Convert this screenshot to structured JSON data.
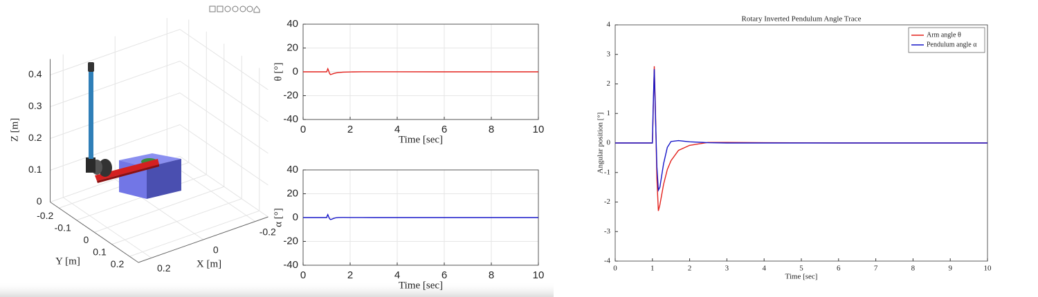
{
  "chart_data": [
    {
      "type": "scene3d",
      "xlabel": "X [m]",
      "ylabel": "Y [m]",
      "zlabel": "Z [m]",
      "xlim": [
        -0.25,
        0.25
      ],
      "ylim": [
        -0.25,
        0.25
      ],
      "zlim": [
        0,
        0.45
      ],
      "xticks": [
        -0.2,
        0,
        0.2
      ],
      "yticks": [
        -0.2,
        -0.1,
        0,
        0.1,
        0.2
      ],
      "zticks": [
        0,
        0.1,
        0.2,
        0.3,
        0.4
      ],
      "grid": true
    },
    {
      "type": "line",
      "xlabel": "Time [sec]",
      "ylabel": "θ [°]",
      "xlim": [
        0,
        10
      ],
      "ylim": [
        -40,
        40
      ],
      "xticks": [
        0,
        2,
        4,
        6,
        8,
        10
      ],
      "yticks": [
        -40,
        -20,
        0,
        20,
        40
      ],
      "grid": true,
      "x": [
        0,
        1.0,
        1.02,
        1.05,
        1.08,
        1.12,
        1.16,
        1.2,
        1.3,
        1.4,
        1.5,
        1.7,
        2.0,
        2.5,
        3,
        4,
        6,
        8,
        10
      ],
      "series": [
        {
          "color": "#e3211c",
          "values": [
            0,
            0,
            1.0,
            2.6,
            1.2,
            -1.2,
            -2.3,
            -2.1,
            -1.4,
            -0.9,
            -0.6,
            -0.25,
            -0.08,
            0.02,
            0.02,
            0.01,
            0,
            0,
            0
          ]
        }
      ]
    },
    {
      "type": "line",
      "xlabel": "Time [sec]",
      "ylabel": "α [°]",
      "xlim": [
        0,
        10
      ],
      "ylim": [
        -40,
        40
      ],
      "xticks": [
        0,
        2,
        4,
        6,
        8,
        10
      ],
      "yticks": [
        -40,
        -20,
        0,
        20,
        40
      ],
      "grid": true,
      "x": [
        0,
        1.0,
        1.02,
        1.05,
        1.08,
        1.12,
        1.16,
        1.2,
        1.3,
        1.4,
        1.5,
        1.7,
        2.0,
        2.5,
        3,
        4,
        6,
        8,
        10
      ],
      "series": [
        {
          "color": "#1515c8",
          "values": [
            0,
            0,
            1.2,
            2.5,
            1.0,
            -0.8,
            -1.6,
            -1.5,
            -0.7,
            -0.15,
            0.05,
            0.08,
            0.04,
            0.01,
            0,
            0,
            0,
            0,
            0
          ]
        }
      ]
    },
    {
      "type": "line",
      "title": "Rotary Inverted Pendulum Angle Trace",
      "xlabel": "Time [sec]",
      "ylabel": "Angular position [°]",
      "xlim": [
        0,
        10
      ],
      "ylim": [
        -4,
        4
      ],
      "xticks": [
        0,
        1,
        2,
        3,
        4,
        5,
        6,
        7,
        8,
        9,
        10
      ],
      "yticks": [
        -4,
        -3,
        -2,
        -1,
        0,
        1,
        2,
        3,
        4
      ],
      "grid": false,
      "legend": "northeast",
      "x": [
        0,
        1.0,
        1.02,
        1.05,
        1.08,
        1.12,
        1.16,
        1.2,
        1.3,
        1.4,
        1.5,
        1.7,
        2.0,
        2.5,
        3,
        4,
        6,
        8,
        10
      ],
      "series": [
        {
          "name": "Arm angle θ",
          "color": "#e3211c",
          "values": [
            0,
            0,
            1.0,
            2.6,
            1.2,
            -1.2,
            -2.3,
            -2.1,
            -1.4,
            -0.9,
            -0.6,
            -0.25,
            -0.08,
            0.02,
            0.02,
            0.01,
            0,
            0,
            0
          ]
        },
        {
          "name": "Pendulum angle α",
          "color": "#1515c8",
          "values": [
            0,
            0,
            1.2,
            2.5,
            1.0,
            -0.8,
            -1.6,
            -1.5,
            -0.7,
            -0.15,
            0.05,
            0.08,
            0.04,
            0.01,
            0,
            0,
            0,
            0,
            0
          ]
        }
      ]
    }
  ]
}
